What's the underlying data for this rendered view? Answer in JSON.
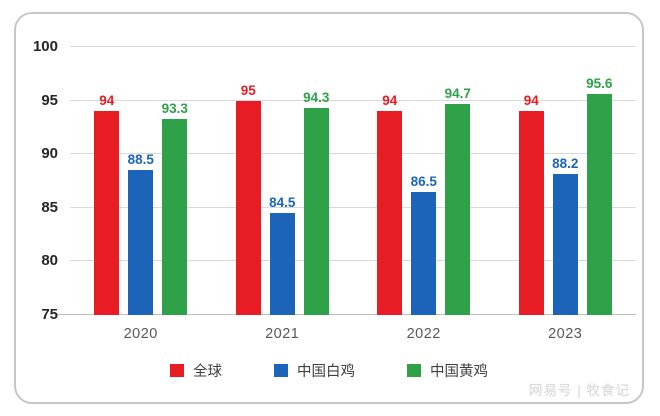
{
  "chart_data": {
    "type": "bar",
    "title": "",
    "categories": [
      "2020",
      "2021",
      "2022",
      "2023"
    ],
    "series": [
      {
        "name": "全球",
        "color": "#e81c23",
        "values": [
          94,
          95,
          94,
          94
        ]
      },
      {
        "name": "中国白鸡",
        "color": "#1b64ba",
        "values": [
          88.5,
          84.5,
          86.5,
          88.2
        ]
      },
      {
        "name": "中国黄鸡",
        "color": "#2fa148",
        "values": [
          93.3,
          94.3,
          94.7,
          95.6
        ]
      }
    ],
    "ylim": [
      75,
      100
    ],
    "yticks": [
      100,
      95,
      90,
      85,
      80,
      75
    ],
    "grid": true,
    "data_labels": true,
    "legend_position": "bottom"
  },
  "colors": {
    "gridline": "#d9d9d9",
    "axis_baseline": "#bfbfbf",
    "tick_label": "#262626",
    "category_label": "#595959",
    "legend_text": "#404040",
    "frame_border": "#c7c7c7",
    "watermark": "#dadada"
  },
  "watermark": {
    "text": "网易号 | 牧食记"
  }
}
